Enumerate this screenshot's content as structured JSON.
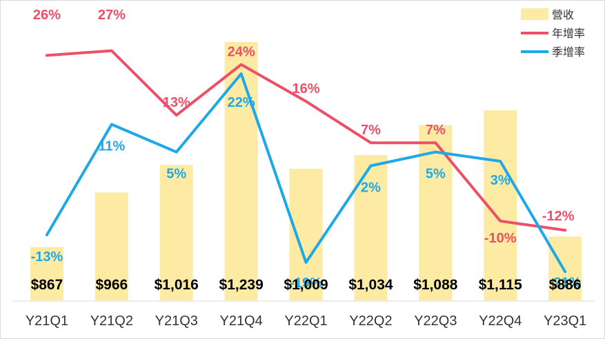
{
  "chart_data": {
    "type": "bar",
    "categories": [
      "Y21Q1",
      "Y21Q2",
      "Y21Q3",
      "Y21Q4",
      "Y22Q1",
      "Y22Q2",
      "Y22Q3",
      "Y22Q4",
      "Y23Q1"
    ],
    "revenue_labels": [
      "$867",
      "$966",
      "$1,016",
      "$1,239",
      "$1,009",
      "$1,034",
      "$1,088",
      "$1,115",
      "$886"
    ],
    "series": [
      {
        "name": "營收",
        "type": "bar",
        "color": "#fdeba3",
        "values": [
          867,
          966,
          1016,
          1239,
          1009,
          1034,
          1088,
          1115,
          886
        ]
      },
      {
        "name": "年增率",
        "type": "line",
        "color": "#ee4f66",
        "values": [
          26,
          27,
          13,
          24,
          16,
          7,
          7,
          -10,
          -12
        ],
        "labels": [
          "26%",
          "27%",
          "13%",
          "24%",
          "16%",
          "7%",
          "7%",
          "-10%",
          "-12%"
        ]
      },
      {
        "name": "季增率",
        "type": "line",
        "color": "#1fa8e8",
        "values": [
          -13,
          11,
          5,
          22,
          -19,
          2,
          5,
          3,
          -21
        ],
        "labels": [
          "-13%",
          "11%",
          "5%",
          "22%",
          "-19%",
          "2%",
          "5%",
          "3%",
          "-21%"
        ]
      }
    ],
    "legend_position": "top-right",
    "grid": false
  }
}
